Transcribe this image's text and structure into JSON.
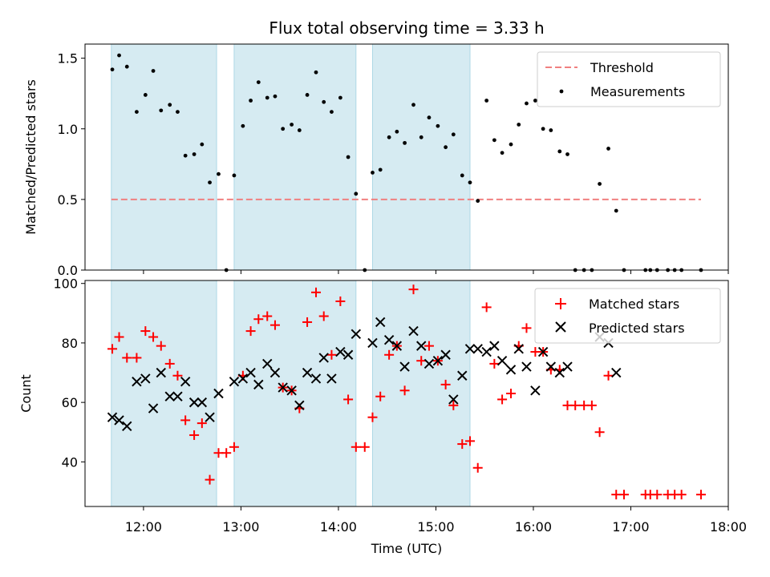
{
  "chart_data": [
    {
      "type": "scatter",
      "title": "Flux total observing time = 3.33 h",
      "xlabel": "",
      "ylabel": "Matched/Predicted stars",
      "xlim": [
        11.4,
        18.0
      ],
      "ylim": [
        0,
        1.6
      ],
      "yticks": [
        0,
        0.5,
        1.0,
        1.5
      ],
      "ytick_labels": [
        "0.0",
        "0.5",
        "1.0",
        "1.5"
      ],
      "shaded_intervals": [
        [
          11.67,
          12.75
        ],
        [
          12.93,
          14.18
        ],
        [
          14.35,
          15.35
        ]
      ],
      "threshold": {
        "name": "Threshold",
        "value": 0.5,
        "x_range": [
          11.67,
          17.72
        ],
        "color": "#f08080"
      },
      "series": [
        {
          "name": "Measurements",
          "marker": "dot",
          "color": "#000000",
          "x": [
            11.68,
            11.75,
            11.83,
            11.93,
            12.02,
            12.1,
            12.18,
            12.27,
            12.35,
            12.43,
            12.52,
            12.6,
            12.68,
            12.77,
            12.85,
            12.93,
            13.02,
            13.1,
            13.18,
            13.27,
            13.35,
            13.43,
            13.52,
            13.6,
            13.68,
            13.77,
            13.85,
            13.93,
            14.02,
            14.1,
            14.18,
            14.27,
            14.35,
            14.43,
            14.52,
            14.6,
            14.68,
            14.77,
            14.85,
            14.93,
            15.02,
            15.1,
            15.18,
            15.27,
            15.35,
            15.43,
            15.52,
            15.6,
            15.68,
            15.77,
            15.85,
            15.93,
            16.02,
            16.1,
            16.18,
            16.27,
            16.35,
            16.43,
            16.52,
            16.6,
            16.68,
            16.77,
            16.85,
            16.93,
            17.15,
            17.2,
            17.27,
            17.38,
            17.45,
            17.52,
            17.72
          ],
          "y": [
            1.42,
            1.52,
            1.44,
            1.12,
            1.24,
            1.41,
            1.13,
            1.17,
            1.12,
            0.81,
            0.82,
            0.89,
            0.62,
            0.68,
            0.0,
            0.67,
            1.02,
            1.2,
            1.33,
            1.22,
            1.23,
            1.0,
            1.03,
            0.99,
            1.24,
            1.4,
            1.19,
            1.12,
            1.22,
            0.8,
            0.54,
            0.0,
            0.69,
            0.71,
            0.94,
            0.98,
            0.9,
            1.17,
            0.94,
            1.08,
            1.02,
            0.87,
            0.96,
            0.67,
            0.62,
            0.49,
            1.2,
            0.92,
            0.83,
            0.89,
            1.03,
            1.18,
            1.2,
            1.0,
            0.99,
            0.84,
            0.82,
            0.0,
            0.0,
            0.0,
            0.61,
            0.86,
            0.42,
            0.0,
            0.0,
            0.0,
            0.0,
            0.0,
            0.0,
            0.0,
            0.0
          ]
        }
      ],
      "legend": "top-right"
    },
    {
      "type": "scatter",
      "title": "",
      "xlabel": "Time (UTC)",
      "ylabel": "Count",
      "xlim": [
        11.4,
        18.0
      ],
      "ylim": [
        25,
        101
      ],
      "yticks": [
        40,
        60,
        80,
        100
      ],
      "ytick_labels": [
        "40",
        "60",
        "80",
        "100"
      ],
      "xticks": [
        12,
        13,
        14,
        15,
        16,
        17,
        18
      ],
      "xtick_labels": [
        "12:00",
        "13:00",
        "14:00",
        "15:00",
        "16:00",
        "17:00",
        "18:00"
      ],
      "shaded_intervals": [
        [
          11.67,
          12.75
        ],
        [
          12.93,
          14.18
        ],
        [
          14.35,
          15.35
        ]
      ],
      "series": [
        {
          "name": "Matched stars",
          "marker": "plus",
          "color": "#ff0000",
          "x": [
            11.68,
            11.75,
            11.83,
            11.93,
            12.02,
            12.1,
            12.18,
            12.27,
            12.35,
            12.43,
            12.52,
            12.6,
            12.68,
            12.77,
            12.85,
            12.93,
            13.02,
            13.1,
            13.18,
            13.27,
            13.35,
            13.43,
            13.52,
            13.6,
            13.68,
            13.77,
            13.85,
            13.93,
            14.02,
            14.1,
            14.18,
            14.27,
            14.35,
            14.43,
            14.52,
            14.6,
            14.68,
            14.77,
            14.85,
            14.93,
            15.02,
            15.1,
            15.18,
            15.27,
            15.35,
            15.43,
            15.52,
            15.6,
            15.68,
            15.77,
            15.85,
            15.93,
            16.02,
            16.1,
            16.18,
            16.27,
            16.35,
            16.43,
            16.52,
            16.6,
            16.68,
            16.77,
            16.85,
            16.93,
            17.15,
            17.2,
            17.27,
            17.38,
            17.45,
            17.52,
            17.72
          ],
          "y": [
            78,
            82,
            75,
            75,
            84,
            82,
            79,
            73,
            69,
            54,
            49,
            53,
            34,
            43,
            43,
            45,
            69,
            84,
            88,
            89,
            86,
            65,
            64,
            58,
            87,
            97,
            89,
            76,
            94,
            61,
            45,
            45,
            55,
            62,
            76,
            79,
            64,
            98,
            74,
            79,
            74,
            66,
            59,
            46,
            47,
            38,
            92,
            73,
            61,
            63,
            79,
            85,
            77,
            77,
            71,
            71,
            59,
            59,
            59,
            59,
            50,
            69,
            29,
            29,
            29,
            29,
            29,
            29,
            29,
            29,
            29
          ]
        },
        {
          "name": "Predicted stars",
          "marker": "x",
          "color": "#000000",
          "x": [
            11.68,
            11.75,
            11.83,
            11.93,
            12.02,
            12.1,
            12.18,
            12.27,
            12.35,
            12.43,
            12.52,
            12.6,
            12.68,
            12.77,
            12.93,
            13.02,
            13.1,
            13.18,
            13.27,
            13.35,
            13.43,
            13.52,
            13.6,
            13.68,
            13.77,
            13.85,
            13.93,
            14.02,
            14.1,
            14.18,
            14.35,
            14.43,
            14.52,
            14.6,
            14.68,
            14.77,
            14.85,
            14.93,
            15.02,
            15.1,
            15.18,
            15.27,
            15.35,
            15.43,
            15.52,
            15.6,
            15.68,
            15.77,
            15.85,
            15.93,
            16.02,
            16.1,
            16.18,
            16.27,
            16.35,
            16.68,
            16.77,
            16.85
          ],
          "y": [
            55,
            54,
            52,
            67,
            68,
            58,
            70,
            62,
            62,
            67,
            60,
            60,
            55,
            63,
            67,
            68,
            70,
            66,
            73,
            70,
            65,
            64,
            59,
            70,
            68,
            75,
            68,
            77,
            76,
            83,
            80,
            87,
            81,
            79,
            72,
            84,
            79,
            73,
            74,
            76,
            61,
            69,
            78,
            78,
            77,
            79,
            74,
            71,
            78,
            72,
            64,
            77,
            72,
            70,
            72,
            82,
            80,
            70
          ]
        }
      ],
      "legend": "top-right"
    }
  ]
}
